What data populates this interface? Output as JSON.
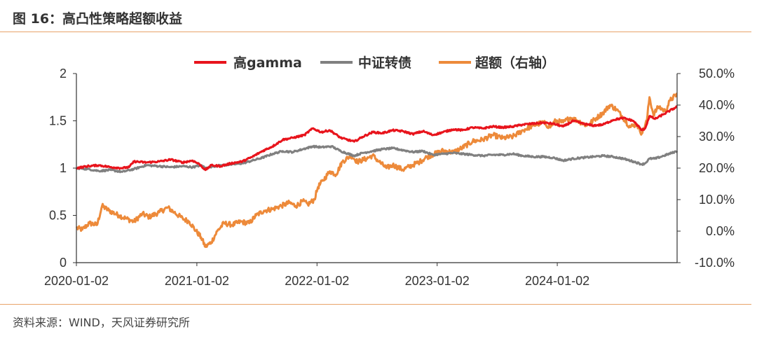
{
  "header": {
    "title": "图 16：高凸性策略超额收益"
  },
  "footer": {
    "source": "资料来源：WIND，天风证券研究所"
  },
  "colors": {
    "rule": "#e8a36a",
    "axis": "#333333"
  },
  "chart_data": {
    "type": "line",
    "title": "",
    "xlabel": "",
    "ylabel": "",
    "x_ticks": [
      "2020-01-02",
      "2021-01-02",
      "2022-01-02",
      "2023-01-02",
      "2024-01-02"
    ],
    "x_range": [
      "2020-01-02",
      "2024-12-31"
    ],
    "y_left": {
      "range": [
        0,
        2
      ],
      "ticks": [
        0,
        0.5,
        1,
        1.5,
        2
      ],
      "tick_labels": [
        "0",
        "0.5",
        "1",
        "1.5",
        "2"
      ]
    },
    "y_right": {
      "range": [
        -10,
        50
      ],
      "ticks": [
        -10,
        0,
        10,
        20,
        30,
        40,
        50
      ],
      "tick_labels": [
        "-10.0%",
        "0.0%",
        "10.0%",
        "20.0%",
        "30.0%",
        "40.0%",
        "50.0%"
      ]
    },
    "grid": false,
    "legend_position": "top",
    "series": [
      {
        "name": "高gamma",
        "color": "#e8141c",
        "axis": "left",
        "points": [
          [
            "2020-01-02",
            1.0
          ],
          [
            "2020-02-05",
            1.02
          ],
          [
            "2020-03-10",
            1.03
          ],
          [
            "2020-04-15",
            1.01
          ],
          [
            "2020-05-20",
            1.0
          ],
          [
            "2020-06-10",
            1.01
          ],
          [
            "2020-06-25",
            1.07
          ],
          [
            "2020-08-01",
            1.06
          ],
          [
            "2020-09-10",
            1.07
          ],
          [
            "2020-10-15",
            1.09
          ],
          [
            "2020-11-20",
            1.06
          ],
          [
            "2020-12-20",
            1.08
          ],
          [
            "2021-01-10",
            1.04
          ],
          [
            "2021-01-28",
            0.98
          ],
          [
            "2021-02-15",
            1.03
          ],
          [
            "2021-03-15",
            1.02
          ],
          [
            "2021-04-15",
            1.05
          ],
          [
            "2021-05-20",
            1.07
          ],
          [
            "2021-06-20",
            1.12
          ],
          [
            "2021-07-20",
            1.18
          ],
          [
            "2021-08-20",
            1.23
          ],
          [
            "2021-09-20",
            1.3
          ],
          [
            "2021-10-20",
            1.32
          ],
          [
            "2021-11-25",
            1.35
          ],
          [
            "2021-12-20",
            1.42
          ],
          [
            "2022-01-15",
            1.38
          ],
          [
            "2022-02-10",
            1.4
          ],
          [
            "2022-03-15",
            1.32
          ],
          [
            "2022-04-25",
            1.28
          ],
          [
            "2022-05-20",
            1.33
          ],
          [
            "2022-06-20",
            1.38
          ],
          [
            "2022-07-20",
            1.37
          ],
          [
            "2022-08-20",
            1.4
          ],
          [
            "2022-09-20",
            1.39
          ],
          [
            "2022-10-20",
            1.36
          ],
          [
            "2022-11-20",
            1.39
          ],
          [
            "2022-12-20",
            1.35
          ],
          [
            "2023-01-20",
            1.38
          ],
          [
            "2023-02-20",
            1.41
          ],
          [
            "2023-03-20",
            1.4
          ],
          [
            "2023-04-20",
            1.43
          ],
          [
            "2023-05-20",
            1.42
          ],
          [
            "2023-06-20",
            1.44
          ],
          [
            "2023-07-20",
            1.43
          ],
          [
            "2023-08-20",
            1.44
          ],
          [
            "2023-09-20",
            1.46
          ],
          [
            "2023-10-20",
            1.47
          ],
          [
            "2023-11-20",
            1.48
          ],
          [
            "2023-12-20",
            1.47
          ],
          [
            "2024-01-20",
            1.44
          ],
          [
            "2024-02-20",
            1.5
          ],
          [
            "2024-03-20",
            1.47
          ],
          [
            "2024-04-20",
            1.45
          ],
          [
            "2024-05-20",
            1.46
          ],
          [
            "2024-06-20",
            1.51
          ],
          [
            "2024-07-20",
            1.53
          ],
          [
            "2024-08-20",
            1.5
          ],
          [
            "2024-09-15",
            1.4
          ],
          [
            "2024-09-25",
            1.42
          ],
          [
            "2024-10-08",
            1.55
          ],
          [
            "2024-10-25",
            1.52
          ],
          [
            "2024-11-20",
            1.57
          ],
          [
            "2024-12-31",
            1.65
          ]
        ]
      },
      {
        "name": "中证转债",
        "color": "#808080",
        "axis": "left",
        "points": [
          [
            "2020-01-02",
            1.0
          ],
          [
            "2020-02-05",
            0.99
          ],
          [
            "2020-03-10",
            0.97
          ],
          [
            "2020-04-15",
            0.98
          ],
          [
            "2020-05-20",
            0.96
          ],
          [
            "2020-06-25",
            0.99
          ],
          [
            "2020-08-01",
            1.03
          ],
          [
            "2020-09-10",
            1.02
          ],
          [
            "2020-10-15",
            1.01
          ],
          [
            "2020-11-20",
            1.02
          ],
          [
            "2020-12-20",
            1.01
          ],
          [
            "2021-01-15",
            1.03
          ],
          [
            "2021-01-28",
            1.0
          ],
          [
            "2021-02-20",
            1.02
          ],
          [
            "2021-03-20",
            1.03
          ],
          [
            "2021-04-20",
            1.04
          ],
          [
            "2021-05-20",
            1.05
          ],
          [
            "2021-06-20",
            1.08
          ],
          [
            "2021-07-20",
            1.11
          ],
          [
            "2021-08-20",
            1.15
          ],
          [
            "2021-09-20",
            1.18
          ],
          [
            "2021-10-20",
            1.17
          ],
          [
            "2021-11-20",
            1.2
          ],
          [
            "2021-12-20",
            1.23
          ],
          [
            "2022-01-15",
            1.22
          ],
          [
            "2022-02-15",
            1.23
          ],
          [
            "2022-03-15",
            1.18
          ],
          [
            "2022-04-25",
            1.13
          ],
          [
            "2022-05-20",
            1.16
          ],
          [
            "2022-06-20",
            1.18
          ],
          [
            "2022-07-20",
            1.2
          ],
          [
            "2022-08-20",
            1.21
          ],
          [
            "2022-09-20",
            1.19
          ],
          [
            "2022-10-20",
            1.17
          ],
          [
            "2022-11-20",
            1.18
          ],
          [
            "2022-12-20",
            1.14
          ],
          [
            "2023-01-20",
            1.15
          ],
          [
            "2023-02-20",
            1.16
          ],
          [
            "2023-03-20",
            1.15
          ],
          [
            "2023-04-20",
            1.14
          ],
          [
            "2023-05-20",
            1.13
          ],
          [
            "2023-06-20",
            1.14
          ],
          [
            "2023-07-20",
            1.14
          ],
          [
            "2023-08-20",
            1.15
          ],
          [
            "2023-09-20",
            1.13
          ],
          [
            "2023-10-20",
            1.12
          ],
          [
            "2023-11-20",
            1.12
          ],
          [
            "2023-12-20",
            1.11
          ],
          [
            "2024-01-20",
            1.08
          ],
          [
            "2024-02-20",
            1.1
          ],
          [
            "2024-03-20",
            1.11
          ],
          [
            "2024-04-20",
            1.12
          ],
          [
            "2024-05-20",
            1.13
          ],
          [
            "2024-06-20",
            1.12
          ],
          [
            "2024-07-20",
            1.1
          ],
          [
            "2024-08-20",
            1.07
          ],
          [
            "2024-09-15",
            1.04
          ],
          [
            "2024-09-25",
            1.05
          ],
          [
            "2024-10-08",
            1.1
          ],
          [
            "2024-10-25",
            1.1
          ],
          [
            "2024-11-20",
            1.13
          ],
          [
            "2024-12-31",
            1.18
          ]
        ]
      },
      {
        "name": "超额（右轴）",
        "color": "#ed8a3a",
        "axis": "right",
        "points": [
          [
            "2020-01-02",
            1.0
          ],
          [
            "2020-01-20",
            0.5
          ],
          [
            "2020-02-10",
            2.5
          ],
          [
            "2020-03-05",
            2.0
          ],
          [
            "2020-03-20",
            8.0
          ],
          [
            "2020-04-10",
            6.5
          ],
          [
            "2020-05-10",
            5.0
          ],
          [
            "2020-06-01",
            4.0
          ],
          [
            "2020-06-25",
            3.0
          ],
          [
            "2020-07-20",
            5.5
          ],
          [
            "2020-08-10",
            4.5
          ],
          [
            "2020-09-10",
            6.0
          ],
          [
            "2020-10-05",
            7.5
          ],
          [
            "2020-10-25",
            6.0
          ],
          [
            "2020-11-20",
            4.0
          ],
          [
            "2020-12-10",
            3.0
          ],
          [
            "2020-12-31",
            0.0
          ],
          [
            "2021-01-15",
            -2.0
          ],
          [
            "2021-01-28",
            -5.0
          ],
          [
            "2021-02-15",
            -3.5
          ],
          [
            "2021-03-05",
            0.0
          ],
          [
            "2021-03-25",
            2.5
          ],
          [
            "2021-04-20",
            2.0
          ],
          [
            "2021-05-15",
            3.0
          ],
          [
            "2021-06-10",
            2.5
          ],
          [
            "2021-07-01",
            5.0
          ],
          [
            "2021-07-25",
            6.5
          ],
          [
            "2021-08-20",
            7.0
          ],
          [
            "2021-09-15",
            8.0
          ],
          [
            "2021-10-10",
            9.0
          ],
          [
            "2021-10-30",
            8.0
          ],
          [
            "2021-11-20",
            9.5
          ],
          [
            "2021-12-05",
            8.5
          ],
          [
            "2021-12-25",
            10.0
          ],
          [
            "2022-01-05",
            14.0
          ],
          [
            "2022-01-20",
            16.0
          ],
          [
            "2022-02-10",
            19.0
          ],
          [
            "2022-03-01",
            18.0
          ],
          [
            "2022-03-20",
            22.0
          ],
          [
            "2022-04-15",
            24.0
          ],
          [
            "2022-05-05",
            22.0
          ],
          [
            "2022-06-01",
            23.0
          ],
          [
            "2022-06-20",
            24.0
          ],
          [
            "2022-07-10",
            22.0
          ],
          [
            "2022-08-01",
            20.0
          ],
          [
            "2022-08-20",
            21.0
          ],
          [
            "2022-09-20",
            19.5
          ],
          [
            "2022-10-20",
            21.0
          ],
          [
            "2022-11-10",
            22.0
          ],
          [
            "2022-12-01",
            23.5
          ],
          [
            "2022-12-25",
            24.5
          ],
          [
            "2023-01-20",
            25.5
          ],
          [
            "2023-02-20",
            25.0
          ],
          [
            "2023-03-20",
            26.5
          ],
          [
            "2023-04-20",
            28.5
          ],
          [
            "2023-05-20",
            29.0
          ],
          [
            "2023-06-20",
            30.5
          ],
          [
            "2023-07-20",
            29.5
          ],
          [
            "2023-08-20",
            30.0
          ],
          [
            "2023-09-20",
            32.0
          ],
          [
            "2023-10-20",
            33.5
          ],
          [
            "2023-11-20",
            34.5
          ],
          [
            "2023-12-10",
            33.0
          ],
          [
            "2023-12-28",
            35.0
          ],
          [
            "2024-01-20",
            34.5
          ],
          [
            "2024-02-10",
            36.0
          ],
          [
            "2024-03-05",
            35.0
          ],
          [
            "2024-04-01",
            33.5
          ],
          [
            "2024-05-01",
            36.0
          ],
          [
            "2024-05-20",
            37.5
          ],
          [
            "2024-06-10",
            40.0
          ],
          [
            "2024-07-01",
            38.5
          ],
          [
            "2024-07-20",
            36.0
          ],
          [
            "2024-08-10",
            33.0
          ],
          [
            "2024-08-30",
            34.0
          ],
          [
            "2024-09-15",
            31.0
          ],
          [
            "2024-09-30",
            35.0
          ],
          [
            "2024-10-08",
            42.5
          ],
          [
            "2024-10-20",
            37.0
          ],
          [
            "2024-11-05",
            39.5
          ],
          [
            "2024-11-25",
            38.0
          ],
          [
            "2024-12-10",
            41.5
          ],
          [
            "2024-12-31",
            43.5
          ]
        ]
      }
    ]
  }
}
